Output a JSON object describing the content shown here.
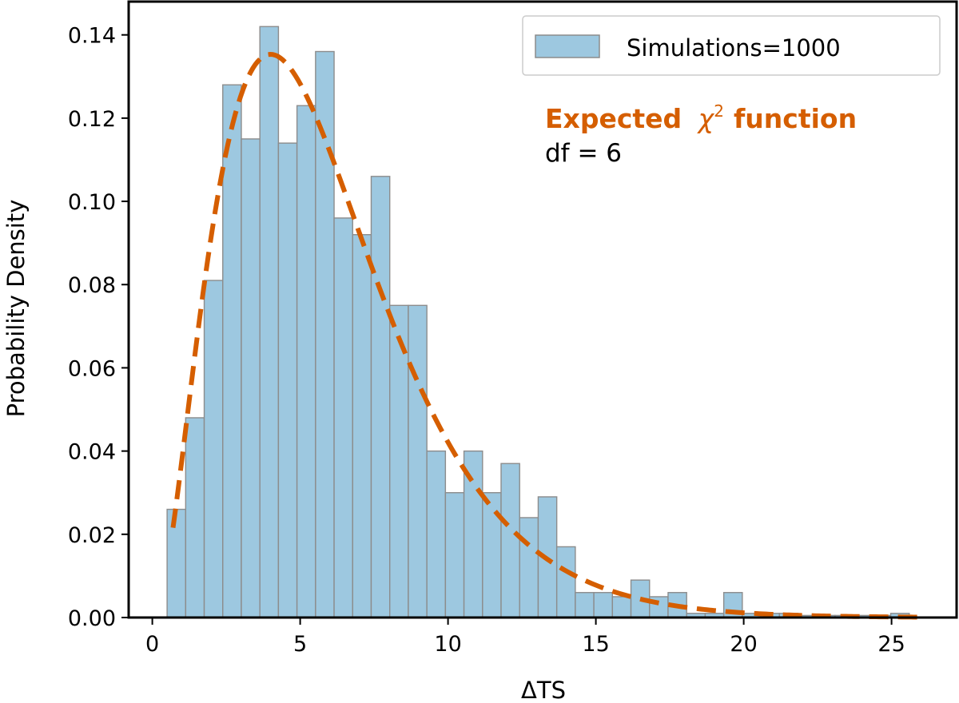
{
  "chart_data": {
    "type": "bar",
    "xlabel": "ΔTS",
    "ylabel": "Probability Density",
    "xlim": [
      -0.8,
      27.2
    ],
    "ylim": [
      0,
      0.148
    ],
    "xticks": [
      0,
      5,
      10,
      15,
      20,
      25
    ],
    "yticks": [
      0.0,
      0.02,
      0.04,
      0.06,
      0.08,
      0.1,
      0.12,
      0.14
    ],
    "ytick_labels": [
      "0.00",
      "0.02",
      "0.04",
      "0.06",
      "0.08",
      "0.10",
      "0.12",
      "0.14"
    ],
    "grid": false,
    "legend_position": "top-right",
    "colors": {
      "bars": "#9dc8e0",
      "bar_edge": "#8c8c8c",
      "curve": "#d55e00"
    },
    "histogram": {
      "name": "Simulations=1000",
      "bin_start": 0.5,
      "bin_width": 0.6275,
      "densities": [
        0.026,
        0.048,
        0.081,
        0.128,
        0.115,
        0.142,
        0.114,
        0.123,
        0.136,
        0.096,
        0.092,
        0.106,
        0.075,
        0.075,
        0.04,
        0.03,
        0.04,
        0.03,
        0.037,
        0.024,
        0.029,
        0.017,
        0.006,
        0.006,
        0.005,
        0.009,
        0.005,
        0.006,
        0.001,
        0.001,
        0.006,
        0.001,
        0.001,
        0.001,
        0.0005,
        0.0005,
        0.0005,
        0.0005,
        0.0005,
        0.001
      ]
    },
    "curve": {
      "name": "Expected χ² function",
      "df": 6,
      "x_range": [
        0.7,
        26
      ]
    },
    "annotation": {
      "title_prefix": "Expected",
      "title_chi": "χ",
      "title_sup": "2",
      "title_suffix": "function",
      "subtitle": "df = 6"
    }
  }
}
